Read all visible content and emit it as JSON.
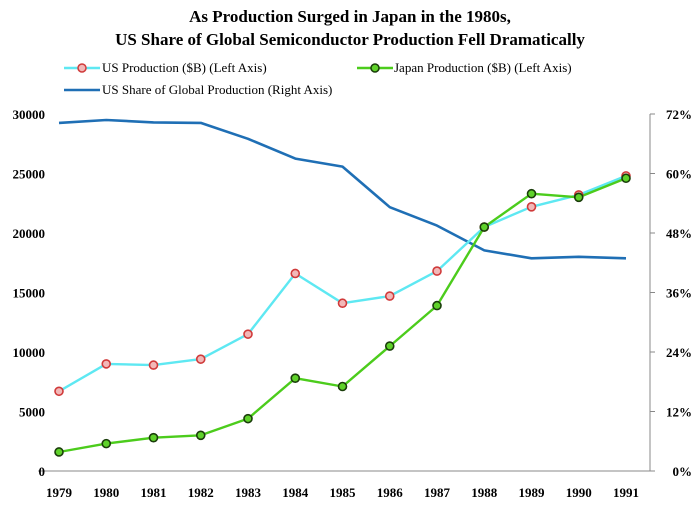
{
  "chart_data": {
    "type": "line",
    "title_line1": "As Production Surged in Japan in the 1980s,",
    "title_line2": "US Share of  Global Semiconductor Production Fell Dramatically",
    "categories": [
      "1979",
      "1980",
      "1981",
      "1982",
      "1983",
      "1984",
      "1985",
      "1986",
      "1987",
      "1988",
      "1989",
      "1990",
      "1991"
    ],
    "left_axis": {
      "ylim": [
        0,
        30000
      ],
      "ticks": [
        0,
        5000,
        10000,
        15000,
        20000,
        25000,
        30000
      ]
    },
    "right_axis": {
      "ylim": [
        0,
        72
      ],
      "ticks": [
        "0%",
        "12%",
        "24%",
        "36%",
        "48%",
        "60%",
        "72%"
      ]
    },
    "grid": false,
    "legend_placement": "top",
    "series": [
      {
        "name": "US Production ($B) (Left Axis)",
        "axis": "left",
        "color": "#5ee8f2",
        "marker_fill": "#f2b8b8",
        "marker_stroke": "#d03a3a",
        "values": [
          6700,
          9000,
          8900,
          9400,
          11500,
          16600,
          14100,
          14700,
          16800,
          20500,
          22200,
          23200,
          24800
        ]
      },
      {
        "name": "Japan Production ($B) (Left Axis)",
        "axis": "left",
        "color": "#4ccc1c",
        "marker_fill": "#5fd22a",
        "marker_stroke": "#1a3d0a",
        "values": [
          1600,
          2300,
          2800,
          3000,
          4400,
          7800,
          7100,
          10500,
          13900,
          20500,
          23300,
          23000,
          24600
        ]
      },
      {
        "name": "US Share of Global Production (Right Axis)",
        "axis": "right",
        "color": "#1f6fb5",
        "values": [
          70.2,
          70.8,
          70.3,
          70.2,
          67,
          63,
          61.4,
          53.2,
          49.5,
          44.5,
          42.9,
          43.2,
          42.9
        ]
      }
    ]
  }
}
